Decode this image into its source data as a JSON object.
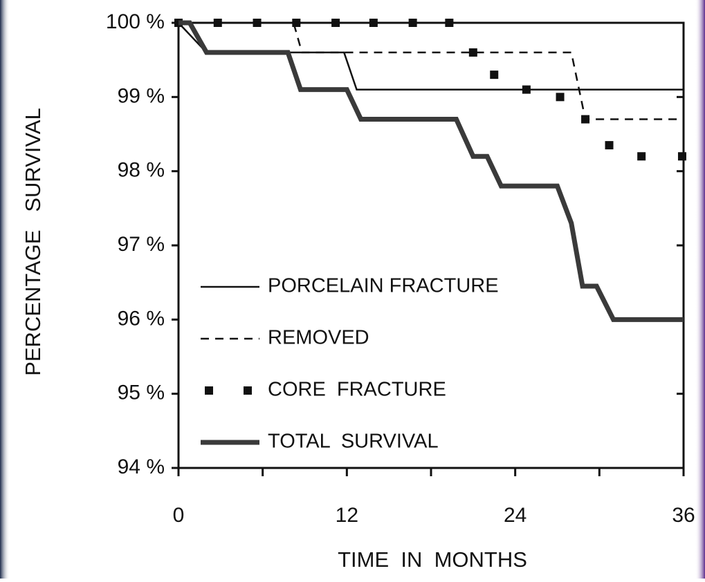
{
  "chart_data": {
    "type": "line",
    "x_label": "TIME  IN  MONTHS",
    "y_label": "PERCENTAGE   SURVIVAL",
    "xlim": [
      0,
      36
    ],
    "ylim": [
      94,
      100
    ],
    "xticks": [
      0,
      12,
      24,
      36
    ],
    "x_minor_ticks": [
      6,
      18,
      30
    ],
    "yticks": [
      {
        "value": 94,
        "label": "94 %"
      },
      {
        "value": 95,
        "label": "95 %"
      },
      {
        "value": 96,
        "label": "96 %"
      },
      {
        "value": 97,
        "label": "97 %"
      },
      {
        "value": 98,
        "label": "98 %"
      },
      {
        "value": 99,
        "label": "99 %"
      },
      {
        "value": 100,
        "label": "100 %"
      }
    ],
    "legend": "lower left",
    "series": [
      {
        "name": "PORCELAIN FRACTURE",
        "color": "#111111",
        "style": "thin",
        "x": [
          0,
          2,
          11.8,
          12.7,
          36
        ],
        "values": [
          100,
          99.6,
          99.6,
          99.1,
          99.1
        ]
      },
      {
        "name": "REMOVED",
        "color": "#111111",
        "style": "dashed",
        "x": [
          0,
          8.2,
          8.8,
          28,
          29,
          36
        ],
        "values": [
          100,
          100,
          99.6,
          99.6,
          98.7,
          98.7
        ]
      },
      {
        "name": "CORE  FRACTURE",
        "color": "#111111",
        "style": "dots",
        "x": [
          0,
          2.8,
          5.6,
          8.4,
          11.2,
          13.9,
          16.7,
          19.3,
          21,
          22.5,
          24.8,
          27.2,
          29,
          30.7,
          33,
          35.9
        ],
        "values": [
          100,
          100,
          100,
          100,
          100,
          100,
          100,
          100,
          99.6,
          99.3,
          99.1,
          99.0,
          98.7,
          98.35,
          98.2,
          98.2
        ]
      },
      {
        "name": "TOTAL  SURVIVAL",
        "color": "#3a3a3a",
        "style": "thick",
        "x": [
          0,
          0.8,
          2,
          7.8,
          8.7,
          12,
          13,
          19.8,
          21,
          22,
          23,
          27,
          28,
          28.8,
          29.8,
          31,
          36
        ],
        "values": [
          100,
          100,
          99.6,
          99.6,
          99.1,
          99.1,
          98.7,
          98.7,
          98.2,
          98.2,
          97.8,
          97.8,
          97.3,
          96.45,
          96.45,
          96.0,
          96.0
        ]
      }
    ]
  }
}
